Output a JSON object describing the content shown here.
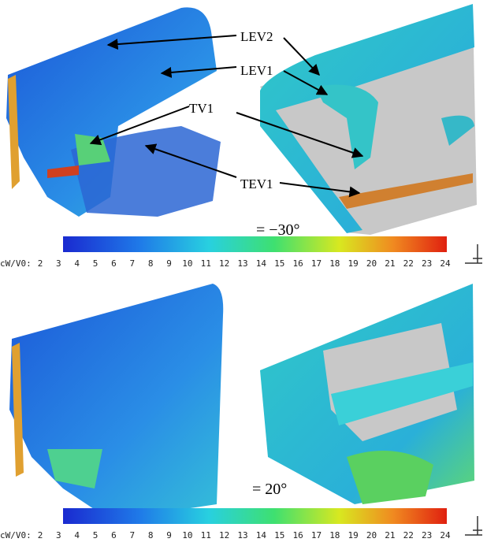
{
  "annotations": {
    "labels": [
      "LEV2",
      "LEV1",
      "TV1",
      "TEV1"
    ]
  },
  "panels": [
    {
      "angle_label": "= −30°",
      "colorbar": {
        "label": "cW/V0:",
        "ticks": [
          2,
          3,
          4,
          5,
          6,
          7,
          8,
          9,
          10,
          11,
          12,
          13,
          14,
          15,
          16,
          17,
          18,
          19,
          20,
          21,
          22,
          23,
          24
        ]
      }
    },
    {
      "angle_label": "= 20°",
      "colorbar": {
        "label": "cW/V0:",
        "ticks": [
          2,
          3,
          4,
          5,
          6,
          7,
          8,
          9,
          10,
          11,
          12,
          13,
          14,
          15,
          16,
          17,
          18,
          19,
          20,
          21,
          22,
          23,
          24
        ]
      }
    }
  ]
}
